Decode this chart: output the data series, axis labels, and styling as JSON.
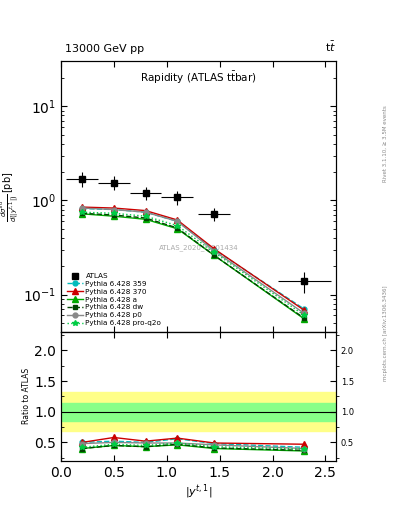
{
  "title_top": "13000 GeV pp",
  "title_right": "tt",
  "plot_title": "Rapidity (ATLAS t#bar{t}bar)",
  "xlabel": "|y^{t,1}|",
  "ylabel_main": "d#sigma^{fid}/d(|y^{t,1}|) [pb]",
  "ylabel_ratio": "Ratio to ATLAS",
  "watermark": "ATLAS_2020_I1801434",
  "rivet_text": "Rivet 3.1.10, >= 3.5M events",
  "mcplots_text": "mcplots.cern.ch [arXiv:1306.3436]",
  "x_values": [
    0.2,
    0.5,
    0.8,
    1.1,
    1.45,
    2.3
  ],
  "atlas_y": [
    1.7,
    1.55,
    1.2,
    1.08,
    0.72,
    0.14
  ],
  "atlas_xerr": [
    0.15,
    0.15,
    0.15,
    0.15,
    0.15,
    0.25
  ],
  "atlas_yerr": [
    0.3,
    0.25,
    0.18,
    0.18,
    0.12,
    0.035
  ],
  "ylim_main": [
    0.04,
    30
  ],
  "ylim_ratio": [
    0.2,
    2.3
  ],
  "xlim": [
    0,
    2.6
  ],
  "series": [
    {
      "label": "Pythia 6.428 359",
      "color": "#00bbbb",
      "linestyle": "--",
      "marker": "o",
      "markersize": 3.5,
      "linewidth": 1.0,
      "y": [
        0.82,
        0.8,
        0.75,
        0.6,
        0.3,
        0.07
      ],
      "ratio_y": [
        0.5,
        0.52,
        0.5,
        0.56,
        0.48,
        0.42
      ]
    },
    {
      "label": "Pythia 6.428 370",
      "color": "#cc0000",
      "linestyle": "-",
      "marker": "^",
      "markersize": 4,
      "linewidth": 1.0,
      "y": [
        0.85,
        0.83,
        0.78,
        0.62,
        0.305,
        0.068
      ],
      "ratio_y": [
        0.5,
        0.58,
        0.52,
        0.57,
        0.49,
        0.47
      ]
    },
    {
      "label": "Pythia 6.428 a",
      "color": "#00aa00",
      "linestyle": "-",
      "marker": "^",
      "markersize": 4,
      "linewidth": 1.0,
      "y": [
        0.72,
        0.68,
        0.63,
        0.5,
        0.26,
        0.055
      ],
      "ratio_y": [
        0.4,
        0.45,
        0.43,
        0.46,
        0.4,
        0.36
      ]
    },
    {
      "label": "Pythia 6.428 dw",
      "color": "#004400",
      "linestyle": "--",
      "marker": "s",
      "markersize": 3.5,
      "linewidth": 1.0,
      "y": [
        0.73,
        0.7,
        0.65,
        0.51,
        0.26,
        0.056
      ],
      "ratio_y": [
        0.4,
        0.45,
        0.43,
        0.47,
        0.41,
        0.37
      ]
    },
    {
      "label": "Pythia 6.428 p0",
      "color": "#888888",
      "linestyle": "-",
      "marker": "o",
      "markersize": 3.5,
      "linewidth": 1.0,
      "y": [
        0.83,
        0.8,
        0.75,
        0.6,
        0.29,
        0.063
      ],
      "ratio_y": [
        0.48,
        0.5,
        0.49,
        0.49,
        0.46,
        0.4
      ]
    },
    {
      "label": "Pythia 6.428 pro-q2o",
      "color": "#00cc44",
      "linestyle": ":",
      "marker": "*",
      "markersize": 4,
      "linewidth": 1.0,
      "y": [
        0.75,
        0.73,
        0.68,
        0.54,
        0.28,
        0.06
      ],
      "ratio_y": [
        0.42,
        0.47,
        0.45,
        0.49,
        0.43,
        0.39
      ]
    }
  ],
  "ratio_band_green_low": 0.85,
  "ratio_band_green_high": 1.15,
  "ratio_band_yellow_low": 0.68,
  "ratio_band_yellow_high": 1.32
}
